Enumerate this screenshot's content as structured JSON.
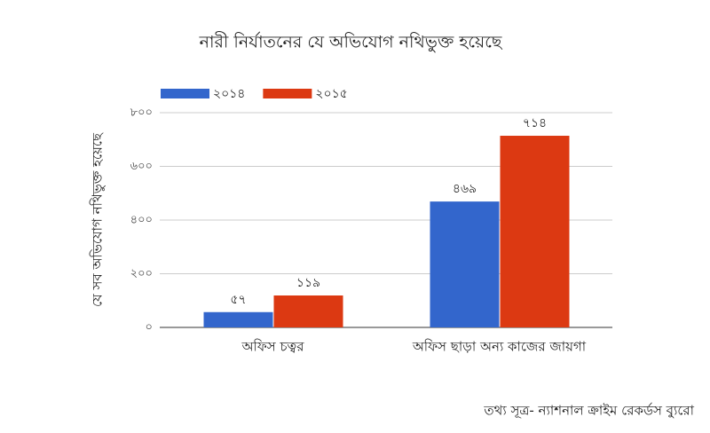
{
  "chart_data": {
    "type": "bar",
    "title": "নারী নির্যাতনের যে অভিযোগ নথিভুক্ত হয়েছে",
    "y_label": "যে সব অভিযোগ নথিভুক্ত হয়েছে",
    "source": "তথ্য সূত্র- ন্যাশনাল ক্রাইম রেকর্ডস ব্যুরো",
    "categories": [
      "অফিস চত্বর",
      "অফিস ছাড়া অন্য কাজের জায়গা"
    ],
    "series": [
      {
        "name": "২০১৪",
        "color": "#3366cc",
        "values": [
          57,
          469
        ],
        "value_labels": [
          "৫৭",
          "৪৬৯"
        ]
      },
      {
        "name": "২০১৫",
        "color": "#dc3912",
        "values": [
          119,
          714
        ],
        "value_labels": [
          "১১৯",
          "৭১৪"
        ]
      }
    ],
    "ylim": [
      0,
      800
    ],
    "yticks": [
      {
        "value": 0,
        "label": "০"
      },
      {
        "value": 200,
        "label": "২০০"
      },
      {
        "value": 400,
        "label": "৪০০"
      },
      {
        "value": 600,
        "label": "৬০০"
      },
      {
        "value": 800,
        "label": "৮০০"
      }
    ],
    "grid": true,
    "legend": "top"
  }
}
